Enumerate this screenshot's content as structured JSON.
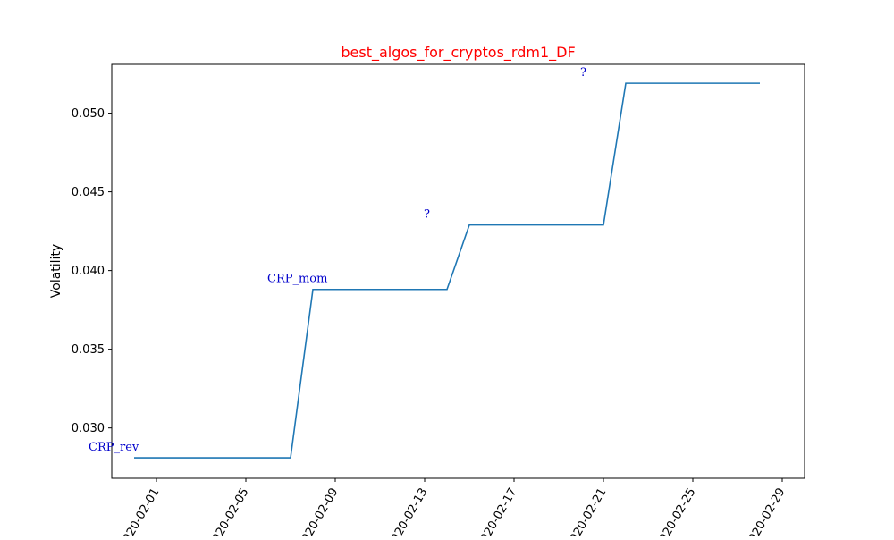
{
  "chart_data": {
    "type": "line",
    "title": "best_algos_for_cryptos_rdm1_DF",
    "xlabel": "",
    "ylabel": "Volatility",
    "x_type": "date",
    "xlim": [
      "2020-01-30",
      "2020-03-01"
    ],
    "ylim": [
      0.0268,
      0.0531
    ],
    "yticks": [
      0.03,
      0.035,
      0.04,
      0.045,
      0.05
    ],
    "ytick_labels": [
      "0.030",
      "0.035",
      "0.040",
      "0.045",
      "0.050"
    ],
    "xticks": [
      "2020-02-01",
      "2020-02-05",
      "2020-02-09",
      "2020-02-13",
      "2020-02-17",
      "2020-02-21",
      "2020-02-25",
      "2020-02-29"
    ],
    "xtick_labels": [
      "2020-02-01",
      "2020-02-05",
      "2020-02-09",
      "2020-02-13",
      "2020-02-17",
      "2020-02-21",
      "2020-02-25",
      "2020-02-29"
    ],
    "grid": false,
    "line_color": "#1f77b4",
    "title_color": "#ff0000",
    "annotation_color": "#0000cc",
    "series": [
      {
        "x": [
          "2020-01-31",
          "2020-02-01",
          "2020-02-02",
          "2020-02-03",
          "2020-02-04",
          "2020-02-05",
          "2020-02-06",
          "2020-02-07",
          "2020-02-08",
          "2020-02-09",
          "2020-02-10",
          "2020-02-11",
          "2020-02-12",
          "2020-02-13",
          "2020-02-14",
          "2020-02-15",
          "2020-02-16",
          "2020-02-17",
          "2020-02-18",
          "2020-02-19",
          "2020-02-20",
          "2020-02-21",
          "2020-02-22",
          "2020-02-23",
          "2020-02-24",
          "2020-02-25",
          "2020-02-26",
          "2020-02-27",
          "2020-02-28"
        ],
        "y": [
          0.0281,
          0.0281,
          0.0281,
          0.0281,
          0.0281,
          0.0281,
          0.0281,
          0.0281,
          0.0388,
          0.0388,
          0.0388,
          0.0388,
          0.0388,
          0.0388,
          0.0388,
          0.0429,
          0.0429,
          0.0429,
          0.0429,
          0.0429,
          0.0429,
          0.0429,
          0.0519,
          0.0519,
          0.0519,
          0.0519,
          0.0519,
          0.0519,
          0.0519
        ]
      }
    ],
    "annotations": [
      {
        "text": "CRP_rev",
        "x": "2020-01-31",
        "y": 0.0281
      },
      {
        "text": "CRP_mom",
        "x": "2020-02-08",
        "y": 0.0388
      },
      {
        "text": "?",
        "x": "2020-02-15",
        "y": 0.0429
      },
      {
        "text": "?",
        "x": "2020-02-22",
        "y": 0.0519
      }
    ]
  }
}
